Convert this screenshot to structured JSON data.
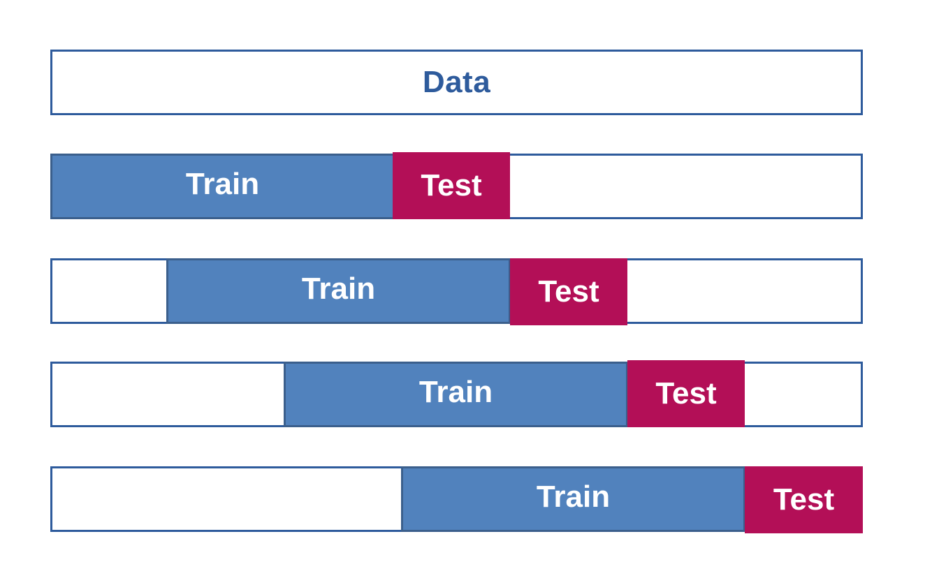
{
  "data_bar": {
    "label": "Data"
  },
  "colors": {
    "outline": "#2e5b9c",
    "train": "#5182bd",
    "test": "#b30f57",
    "data_text": "#2e5b9c"
  },
  "folds": [
    {
      "train_label": "Train",
      "test_label": "Test"
    },
    {
      "train_label": "Train",
      "test_label": "Test"
    },
    {
      "train_label": "Train",
      "test_label": "Test"
    },
    {
      "train_label": "Train",
      "test_label": "Test"
    }
  ]
}
